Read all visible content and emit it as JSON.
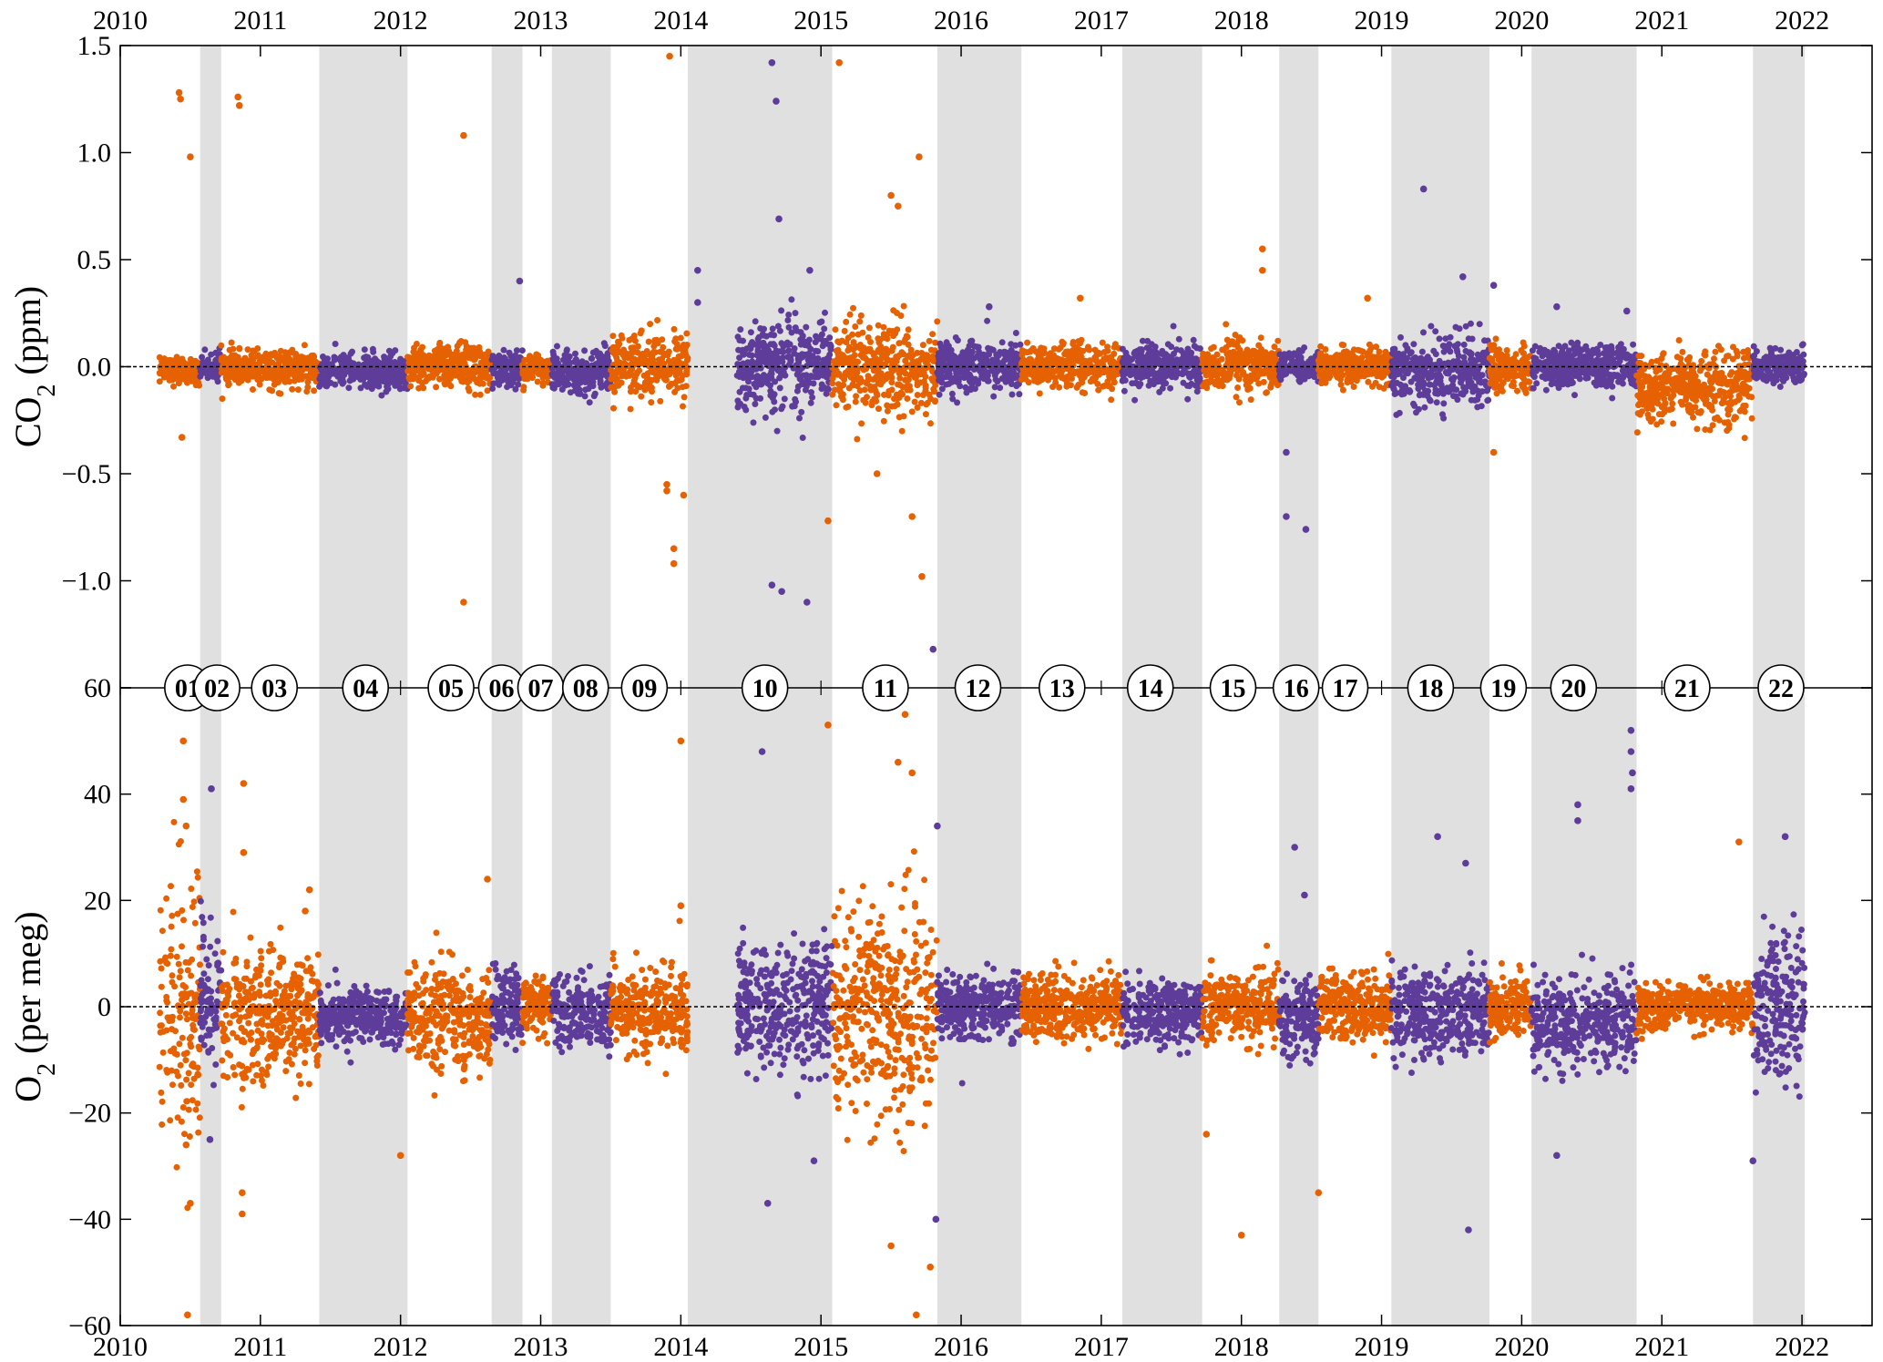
{
  "chart_data": {
    "type": "scatter",
    "colors": {
      "orange": "#e66101",
      "purple": "#5e3c99",
      "shade": "#e0e0e0"
    },
    "x_axis": {
      "range": [
        2010,
        2022.5
      ],
      "tick_labels": [
        "2010",
        "2011",
        "2012",
        "2013",
        "2014",
        "2015",
        "2016",
        "2017",
        "2018",
        "2019",
        "2020",
        "2021",
        "2022"
      ],
      "tick_values": [
        2010,
        2011,
        2012,
        2013,
        2014,
        2015,
        2016,
        2017,
        2018,
        2019,
        2020,
        2021,
        2022
      ]
    },
    "panels": [
      {
        "name": "co2",
        "ylabel_main": "CO",
        "ylabel_sub": "2",
        "ylabel_unit": " (ppm)",
        "ylim": [
          -1.5,
          1.5
        ],
        "ytick_values": [
          -1.5,
          -1.0,
          -0.5,
          0.0,
          0.5,
          1.0,
          1.5
        ],
        "ytick_labels": [
          "−1.5",
          "−1.0",
          "−0.5",
          "0.0",
          "0.5",
          "1.0",
          "1.5"
        ],
        "baseline": 0
      },
      {
        "name": "o2",
        "ylabel_main": "O",
        "ylabel_sub": "2",
        "ylabel_unit": " (per meg)",
        "ylim": [
          -60,
          60
        ],
        "ytick_values": [
          -60,
          -40,
          -20,
          0,
          20,
          40,
          60
        ],
        "ytick_labels": [
          "−60",
          "−40",
          "−20",
          "0",
          "20",
          "40",
          "60"
        ],
        "baseline": 0
      }
    ],
    "shaded_periods": [
      [
        2010.57,
        2010.72
      ],
      [
        2011.42,
        2012.05
      ],
      [
        2012.65,
        2012.87
      ],
      [
        2013.08,
        2013.5
      ],
      [
        2014.05,
        2015.08
      ],
      [
        2015.83,
        2016.43
      ],
      [
        2017.15,
        2017.72
      ],
      [
        2018.27,
        2018.55
      ],
      [
        2019.07,
        2019.77
      ],
      [
        2020.07,
        2020.82
      ],
      [
        2021.65,
        2022.02
      ]
    ],
    "periods": [
      {
        "label": "01",
        "x": 2010.48,
        "start": 2010.28,
        "end": 2010.57,
        "color": "orange",
        "co2_mean": -0.02,
        "co2_spread": 0.03,
        "o2_mean": 0,
        "o2_spread": 14
      },
      {
        "label": "02",
        "x": 2010.69,
        "start": 2010.57,
        "end": 2010.72,
        "color": "purple",
        "co2_mean": 0.0,
        "co2_spread": 0.03,
        "o2_mean": 2,
        "o2_spread": 6
      },
      {
        "label": "03",
        "x": 2011.1,
        "start": 2010.72,
        "end": 2011.42,
        "color": "orange",
        "co2_mean": -0.01,
        "co2_spread": 0.04,
        "o2_mean": -2,
        "o2_spread": 6
      },
      {
        "label": "04",
        "x": 2011.75,
        "start": 2011.42,
        "end": 2012.05,
        "color": "purple",
        "co2_mean": -0.02,
        "co2_spread": 0.04,
        "o2_mean": -2,
        "o2_spread": 2.5
      },
      {
        "label": "05",
        "x": 2012.36,
        "start": 2012.05,
        "end": 2012.65,
        "color": "orange",
        "co2_mean": 0.0,
        "co2_spread": 0.05,
        "o2_mean": -2,
        "o2_spread": 5
      },
      {
        "label": "06",
        "x": 2012.72,
        "start": 2012.65,
        "end": 2012.87,
        "color": "purple",
        "co2_mean": -0.01,
        "co2_spread": 0.04,
        "o2_mean": 0,
        "o2_spread": 3
      },
      {
        "label": "07",
        "x": 2013.0,
        "start": 2012.87,
        "end": 2013.08,
        "color": "orange",
        "co2_mean": -0.01,
        "co2_spread": 0.03,
        "o2_mean": 0,
        "o2_spread": 3
      },
      {
        "label": "08",
        "x": 2013.32,
        "start": 2013.08,
        "end": 2013.5,
        "color": "purple",
        "co2_mean": -0.02,
        "co2_spread": 0.05,
        "o2_mean": -1,
        "o2_spread": 3
      },
      {
        "label": "09",
        "x": 2013.74,
        "start": 2013.5,
        "end": 2014.05,
        "color": "orange",
        "co2_mean": 0.0,
        "co2_spread": 0.08,
        "o2_mean": -1,
        "o2_spread": 4
      },
      {
        "label": "10",
        "x": 2014.6,
        "start": 2014.4,
        "end": 2015.08,
        "color": "purple",
        "co2_mean": 0.0,
        "co2_spread": 0.1,
        "o2_mean": 0,
        "o2_spread": 6
      },
      {
        "label": "11",
        "x": 2015.46,
        "start": 2015.08,
        "end": 2015.83,
        "color": "orange",
        "co2_mean": 0.0,
        "co2_spread": 0.1,
        "o2_mean": 0,
        "o2_spread": 10
      },
      {
        "label": "12",
        "x": 2016.12,
        "start": 2015.83,
        "end": 2016.43,
        "color": "purple",
        "co2_mean": 0.0,
        "co2_spread": 0.06,
        "o2_mean": 0,
        "o2_spread": 3
      },
      {
        "label": "13",
        "x": 2016.72,
        "start": 2016.43,
        "end": 2017.15,
        "color": "orange",
        "co2_mean": 0.0,
        "co2_spread": 0.05,
        "o2_mean": 0,
        "o2_spread": 3
      },
      {
        "label": "14",
        "x": 2017.35,
        "start": 2017.15,
        "end": 2017.72,
        "color": "purple",
        "co2_mean": 0.0,
        "co2_spread": 0.05,
        "o2_mean": -1,
        "o2_spread": 3
      },
      {
        "label": "15",
        "x": 2017.94,
        "start": 2017.72,
        "end": 2018.27,
        "color": "orange",
        "co2_mean": 0.0,
        "co2_spread": 0.06,
        "o2_mean": 0,
        "o2_spread": 3
      },
      {
        "label": "16",
        "x": 2018.39,
        "start": 2018.27,
        "end": 2018.55,
        "color": "purple",
        "co2_mean": 0.0,
        "co2_spread": 0.03,
        "o2_mean": -2,
        "o2_spread": 4
      },
      {
        "label": "17",
        "x": 2018.74,
        "start": 2018.55,
        "end": 2019.07,
        "color": "orange",
        "co2_mean": 0.0,
        "co2_spread": 0.04,
        "o2_mean": 0,
        "o2_spread": 3
      },
      {
        "label": "18",
        "x": 2019.35,
        "start": 2019.07,
        "end": 2019.77,
        "color": "purple",
        "co2_mean": -0.02,
        "co2_spread": 0.08,
        "o2_mean": -1,
        "o2_spread": 4
      },
      {
        "label": "19",
        "x": 2019.87,
        "start": 2019.77,
        "end": 2020.07,
        "color": "orange",
        "co2_mean": -0.01,
        "co2_spread": 0.05,
        "o2_mean": 0,
        "o2_spread": 3
      },
      {
        "label": "20",
        "x": 2020.37,
        "start": 2020.07,
        "end": 2020.82,
        "color": "purple",
        "co2_mean": 0.0,
        "co2_spread": 0.05,
        "o2_mean": -3,
        "o2_spread": 4
      },
      {
        "label": "21",
        "x": 2021.18,
        "start": 2020.82,
        "end": 2021.65,
        "color": "orange",
        "co2_mean": -0.1,
        "co2_spread": 0.08,
        "o2_mean": 0,
        "o2_spread": 2
      },
      {
        "label": "22",
        "x": 2021.85,
        "start": 2021.65,
        "end": 2022.02,
        "color": "purple",
        "co2_mean": 0.0,
        "co2_spread": 0.04,
        "o2_mean": 0,
        "o2_spread": 7
      }
    ],
    "outliers": {
      "co2": [
        {
          "x": 2010.42,
          "y": 1.28,
          "color": "orange"
        },
        {
          "x": 2010.43,
          "y": 1.25,
          "color": "orange"
        },
        {
          "x": 2010.5,
          "y": 0.98,
          "color": "orange"
        },
        {
          "x": 2010.44,
          "y": -0.33,
          "color": "orange"
        },
        {
          "x": 2010.84,
          "y": 1.26,
          "color": "orange"
        },
        {
          "x": 2010.85,
          "y": 1.22,
          "color": "orange"
        },
        {
          "x": 2012.45,
          "y": 1.08,
          "color": "orange"
        },
        {
          "x": 2012.45,
          "y": -1.1,
          "color": "orange"
        },
        {
          "x": 2012.85,
          "y": 0.4,
          "color": "purple"
        },
        {
          "x": 2013.92,
          "y": 1.45,
          "color": "orange"
        },
        {
          "x": 2013.9,
          "y": -0.55,
          "color": "orange"
        },
        {
          "x": 2013.9,
          "y": -0.58,
          "color": "orange"
        },
        {
          "x": 2013.95,
          "y": -0.85,
          "color": "orange"
        },
        {
          "x": 2013.95,
          "y": -0.92,
          "color": "orange"
        },
        {
          "x": 2014.02,
          "y": -0.6,
          "color": "orange"
        },
        {
          "x": 2014.12,
          "y": 0.45,
          "color": "purple"
        },
        {
          "x": 2014.12,
          "y": 0.3,
          "color": "purple"
        },
        {
          "x": 2014.65,
          "y": 1.42,
          "color": "purple"
        },
        {
          "x": 2014.68,
          "y": 1.24,
          "color": "purple"
        },
        {
          "x": 2014.7,
          "y": 0.69,
          "color": "purple"
        },
        {
          "x": 2014.65,
          "y": -1.02,
          "color": "purple"
        },
        {
          "x": 2014.72,
          "y": -1.05,
          "color": "purple"
        },
        {
          "x": 2014.9,
          "y": -1.1,
          "color": "purple"
        },
        {
          "x": 2014.92,
          "y": 0.45,
          "color": "purple"
        },
        {
          "x": 2015.13,
          "y": 1.42,
          "color": "orange"
        },
        {
          "x": 2015.05,
          "y": -0.72,
          "color": "orange"
        },
        {
          "x": 2015.4,
          "y": -0.5,
          "color": "orange"
        },
        {
          "x": 2015.5,
          "y": 0.8,
          "color": "orange"
        },
        {
          "x": 2015.55,
          "y": 0.75,
          "color": "orange"
        },
        {
          "x": 2015.65,
          "y": -0.7,
          "color": "orange"
        },
        {
          "x": 2015.7,
          "y": 0.98,
          "color": "orange"
        },
        {
          "x": 2015.72,
          "y": -0.98,
          "color": "orange"
        },
        {
          "x": 2015.8,
          "y": -1.32,
          "color": "purple"
        },
        {
          "x": 2016.2,
          "y": 0.28,
          "color": "purple"
        },
        {
          "x": 2016.85,
          "y": 0.32,
          "color": "orange"
        },
        {
          "x": 2018.15,
          "y": 0.55,
          "color": "orange"
        },
        {
          "x": 2018.15,
          "y": 0.45,
          "color": "orange"
        },
        {
          "x": 2018.32,
          "y": -0.4,
          "color": "purple"
        },
        {
          "x": 2018.32,
          "y": -0.7,
          "color": "purple"
        },
        {
          "x": 2018.46,
          "y": -0.76,
          "color": "purple"
        },
        {
          "x": 2018.9,
          "y": 0.32,
          "color": "orange"
        },
        {
          "x": 2019.3,
          "y": 0.83,
          "color": "purple"
        },
        {
          "x": 2019.58,
          "y": 0.42,
          "color": "purple"
        },
        {
          "x": 2019.8,
          "y": 0.38,
          "color": "purple"
        },
        {
          "x": 2019.8,
          "y": -0.4,
          "color": "orange"
        },
        {
          "x": 2020.25,
          "y": 0.28,
          "color": "purple"
        },
        {
          "x": 2020.75,
          "y": 0.26,
          "color": "purple"
        }
      ],
      "o2": [
        {
          "x": 2010.45,
          "y": 50,
          "color": "orange"
        },
        {
          "x": 2010.45,
          "y": 39,
          "color": "orange"
        },
        {
          "x": 2010.47,
          "y": 34,
          "color": "orange"
        },
        {
          "x": 2010.5,
          "y": -37,
          "color": "orange"
        },
        {
          "x": 2010.48,
          "y": -58,
          "color": "orange"
        },
        {
          "x": 2010.47,
          "y": -26,
          "color": "orange"
        },
        {
          "x": 2010.65,
          "y": 41,
          "color": "purple"
        },
        {
          "x": 2010.64,
          "y": -25,
          "color": "purple"
        },
        {
          "x": 2010.88,
          "y": 42,
          "color": "orange"
        },
        {
          "x": 2010.88,
          "y": 29,
          "color": "orange"
        },
        {
          "x": 2010.87,
          "y": -35,
          "color": "orange"
        },
        {
          "x": 2010.87,
          "y": -39,
          "color": "orange"
        },
        {
          "x": 2011.35,
          "y": 22,
          "color": "orange"
        },
        {
          "x": 2011.32,
          "y": 18,
          "color": "orange"
        },
        {
          "x": 2012.62,
          "y": 24,
          "color": "orange"
        },
        {
          "x": 2012.0,
          "y": -28,
          "color": "orange"
        },
        {
          "x": 2014.0,
          "y": 50,
          "color": "orange"
        },
        {
          "x": 2014.0,
          "y": 19,
          "color": "orange"
        },
        {
          "x": 2014.58,
          "y": 48,
          "color": "purple"
        },
        {
          "x": 2014.62,
          "y": -37,
          "color": "purple"
        },
        {
          "x": 2014.95,
          "y": -29,
          "color": "purple"
        },
        {
          "x": 2015.05,
          "y": 53,
          "color": "orange"
        },
        {
          "x": 2015.6,
          "y": 55,
          "color": "orange"
        },
        {
          "x": 2015.55,
          "y": 46,
          "color": "orange"
        },
        {
          "x": 2015.65,
          "y": 44,
          "color": "orange"
        },
        {
          "x": 2015.5,
          "y": -45,
          "color": "orange"
        },
        {
          "x": 2015.68,
          "y": -58,
          "color": "orange"
        },
        {
          "x": 2015.78,
          "y": -49,
          "color": "orange"
        },
        {
          "x": 2015.83,
          "y": 34,
          "color": "purple"
        },
        {
          "x": 2015.82,
          "y": -40,
          "color": "purple"
        },
        {
          "x": 2017.75,
          "y": -24,
          "color": "orange"
        },
        {
          "x": 2018.0,
          "y": -43,
          "color": "orange"
        },
        {
          "x": 2018.38,
          "y": 30,
          "color": "purple"
        },
        {
          "x": 2018.45,
          "y": 21,
          "color": "purple"
        },
        {
          "x": 2018.55,
          "y": -35,
          "color": "orange"
        },
        {
          "x": 2019.4,
          "y": 32,
          "color": "purple"
        },
        {
          "x": 2019.6,
          "y": 27,
          "color": "purple"
        },
        {
          "x": 2019.62,
          "y": -42,
          "color": "purple"
        },
        {
          "x": 2020.4,
          "y": 38,
          "color": "purple"
        },
        {
          "x": 2020.4,
          "y": 35,
          "color": "purple"
        },
        {
          "x": 2020.78,
          "y": 52,
          "color": "purple"
        },
        {
          "x": 2020.78,
          "y": 48,
          "color": "purple"
        },
        {
          "x": 2020.79,
          "y": 44,
          "color": "purple"
        },
        {
          "x": 2020.78,
          "y": 41,
          "color": "purple"
        },
        {
          "x": 2020.25,
          "y": -28,
          "color": "purple"
        },
        {
          "x": 2021.55,
          "y": 31,
          "color": "orange"
        },
        {
          "x": 2021.88,
          "y": 32,
          "color": "purple"
        },
        {
          "x": 2021.65,
          "y": -29,
          "color": "purple"
        }
      ]
    }
  }
}
